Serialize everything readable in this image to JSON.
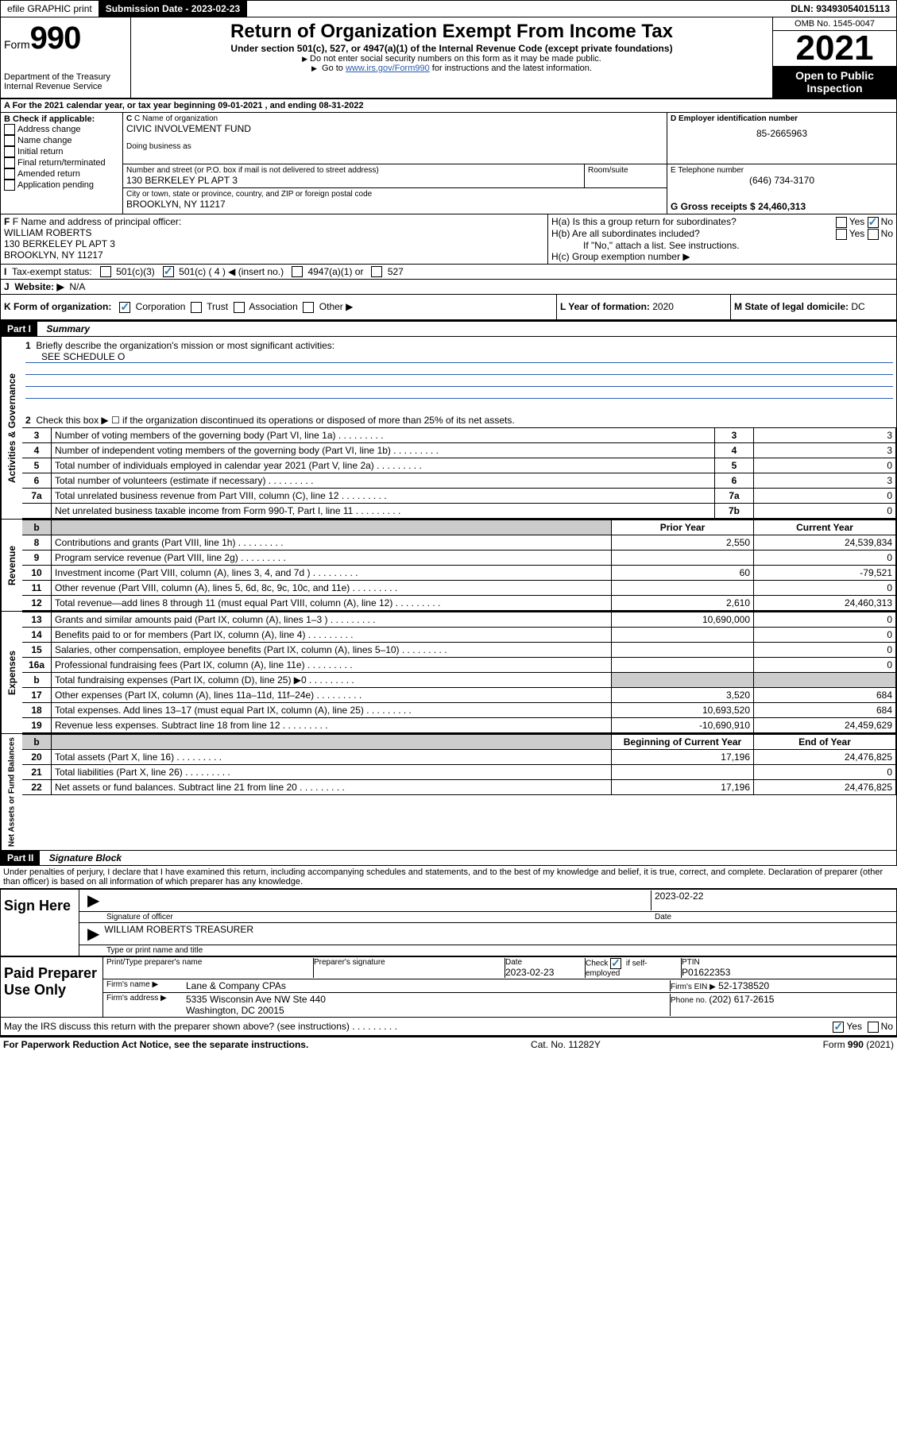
{
  "topbar": {
    "efile": "efile GRAPHIC print",
    "subdate_label": "Submission Date - ",
    "subdate": "2023-02-23",
    "dln_label": "DLN: ",
    "dln": "93493054015113"
  },
  "header": {
    "form_label": "Form",
    "form_num": "990",
    "dept": "Department of the Treasury\nInternal Revenue Service",
    "title": "Return of Organization Exempt From Income Tax",
    "sub": "Under section 501(c), 527, or 4947(a)(1) of the Internal Revenue Code (except private foundations)",
    "note1": "Do not enter social security numbers on this form as it may be made public.",
    "note2_pre": "Go to ",
    "note2_link": "www.irs.gov/Form990",
    "note2_post": " for instructions and the latest information.",
    "omb": "OMB No. 1545-0047",
    "year": "2021",
    "open": "Open to Public Inspection"
  },
  "lineA": {
    "prefix": "A For the 2021 calendar year, or tax year beginning ",
    "begin": "09-01-2021",
    "mid": " , and ending ",
    "end": "08-31-2022"
  },
  "boxB": {
    "label": "B Check if applicable:",
    "opts": [
      "Address change",
      "Name change",
      "Initial return",
      "Final return/terminated",
      "Amended return",
      "Application pending"
    ]
  },
  "boxC": {
    "name_label": "C Name of organization",
    "name": "CIVIC INVOLVEMENT FUND",
    "dba_label": "Doing business as",
    "addr_label": "Number and street (or P.O. box if mail is not delivered to street address)",
    "room_label": "Room/suite",
    "addr": "130 BERKELEY PL APT 3",
    "city_label": "City or town, state or province, country, and ZIP or foreign postal code",
    "city": "BROOKLYN, NY  11217"
  },
  "boxD": {
    "label": "D Employer identification number",
    "ein": "85-2665963"
  },
  "boxE": {
    "label": "E Telephone number",
    "phone": "(646) 734-3170"
  },
  "boxG": {
    "label": "G Gross receipts $ ",
    "val": "24,460,313"
  },
  "boxF": {
    "label": "F Name and address of principal officer:",
    "name": "WILLIAM ROBERTS",
    "addr1": "130 BERKELEY PL APT 3",
    "addr2": "BROOKLYN, NY  11217"
  },
  "boxH": {
    "a_label": "H(a)  Is this a group return for subordinates?",
    "b_label": "H(b)  Are all subordinates included?",
    "b_note": "If \"No,\" attach a list. See instructions.",
    "c_label": "H(c)  Group exemption number ▶",
    "yes": "Yes",
    "no": "No"
  },
  "lineI": {
    "label": "Tax-exempt status:",
    "opt1": "501(c)(3)",
    "opt2": "501(c) ( 4 ) ◀ (insert no.)",
    "opt3": "4947(a)(1) or",
    "opt4": "527"
  },
  "lineJ": {
    "label": "Website: ▶",
    "val": "N/A"
  },
  "lineK": {
    "label": "K Form of organization:",
    "opts": [
      "Corporation",
      "Trust",
      "Association",
      "Other ▶"
    ]
  },
  "lineL": {
    "label": "L Year of formation: ",
    "val": "2020"
  },
  "lineM": {
    "label": "M State of legal domicile: ",
    "val": "DC"
  },
  "part1": {
    "header": "Part I",
    "title": "Summary",
    "line1": "Briefly describe the organization's mission or most significant activities:",
    "line1_val": "SEE SCHEDULE O",
    "line2": "Check this box ▶ ☐  if the organization discontinued its operations or disposed of more than 25% of its net assets.",
    "vert_gov": "Activities & Governance",
    "vert_rev": "Revenue",
    "vert_exp": "Expenses",
    "vert_net": "Net Assets or Fund Balances",
    "cols": {
      "prior": "Prior Year",
      "current": "Current Year",
      "beg": "Beginning of Current Year",
      "end": "End of Year"
    },
    "rows_gov": [
      {
        "n": "3",
        "label": "Number of voting members of the governing body (Part VI, line 1a)",
        "k": "3",
        "v": "3"
      },
      {
        "n": "4",
        "label": "Number of independent voting members of the governing body (Part VI, line 1b)",
        "k": "4",
        "v": "3"
      },
      {
        "n": "5",
        "label": "Total number of individuals employed in calendar year 2021 (Part V, line 2a)",
        "k": "5",
        "v": "0"
      },
      {
        "n": "6",
        "label": "Total number of volunteers (estimate if necessary)",
        "k": "6",
        "v": "3"
      },
      {
        "n": "7a",
        "label": "Total unrelated business revenue from Part VIII, column (C), line 12",
        "k": "7a",
        "v": "0"
      },
      {
        "n": "",
        "label": "Net unrelated business taxable income from Form 990-T, Part I, line 11",
        "k": "7b",
        "v": "0"
      }
    ],
    "rows_rev": [
      {
        "n": "8",
        "label": "Contributions and grants (Part VIII, line 1h)",
        "p": "2,550",
        "c": "24,539,834"
      },
      {
        "n": "9",
        "label": "Program service revenue (Part VIII, line 2g)",
        "p": "",
        "c": "0"
      },
      {
        "n": "10",
        "label": "Investment income (Part VIII, column (A), lines 3, 4, and 7d )",
        "p": "60",
        "c": "-79,521"
      },
      {
        "n": "11",
        "label": "Other revenue (Part VIII, column (A), lines 5, 6d, 8c, 9c, 10c, and 11e)",
        "p": "",
        "c": "0"
      },
      {
        "n": "12",
        "label": "Total revenue—add lines 8 through 11 (must equal Part VIII, column (A), line 12)",
        "p": "2,610",
        "c": "24,460,313"
      }
    ],
    "rows_exp": [
      {
        "n": "13",
        "label": "Grants and similar amounts paid (Part IX, column (A), lines 1–3 )",
        "p": "10,690,000",
        "c": "0"
      },
      {
        "n": "14",
        "label": "Benefits paid to or for members (Part IX, column (A), line 4)",
        "p": "",
        "c": "0"
      },
      {
        "n": "15",
        "label": "Salaries, other compensation, employee benefits (Part IX, column (A), lines 5–10)",
        "p": "",
        "c": "0"
      },
      {
        "n": "16a",
        "label": "Professional fundraising fees (Part IX, column (A), line 11e)",
        "p": "",
        "c": "0"
      },
      {
        "n": "b",
        "label": "Total fundraising expenses (Part IX, column (D), line 25) ▶0",
        "p": "shaded",
        "c": "shaded"
      },
      {
        "n": "17",
        "label": "Other expenses (Part IX, column (A), lines 11a–11d, 11f–24e)",
        "p": "3,520",
        "c": "684"
      },
      {
        "n": "18",
        "label": "Total expenses. Add lines 13–17 (must equal Part IX, column (A), line 25)",
        "p": "10,693,520",
        "c": "684"
      },
      {
        "n": "19",
        "label": "Revenue less expenses. Subtract line 18 from line 12",
        "p": "-10,690,910",
        "c": "24,459,629"
      }
    ],
    "rows_net": [
      {
        "n": "20",
        "label": "Total assets (Part X, line 16)",
        "p": "17,196",
        "c": "24,476,825"
      },
      {
        "n": "21",
        "label": "Total liabilities (Part X, line 26)",
        "p": "",
        "c": "0"
      },
      {
        "n": "22",
        "label": "Net assets or fund balances. Subtract line 21 from line 20",
        "p": "17,196",
        "c": "24,476,825"
      }
    ]
  },
  "part2": {
    "header": "Part II",
    "title": "Signature Block",
    "decl": "Under penalties of perjury, I declare that I have examined this return, including accompanying schedules and statements, and to the best of my knowledge and belief, it is true, correct, and complete. Declaration of preparer (other than officer) is based on all information of which preparer has any knowledge."
  },
  "sign": {
    "here": "Sign Here",
    "sig_label": "Signature of officer",
    "date_label": "Date",
    "date": "2023-02-22",
    "name": "WILLIAM ROBERTS  TREASURER",
    "name_label": "Type or print name and title"
  },
  "preparer": {
    "label": "Paid Preparer Use Only",
    "print_label": "Print/Type preparer's name",
    "sig_label": "Preparer's signature",
    "date_label": "Date",
    "date": "2023-02-23",
    "check_label": "Check ☑ if self-employed",
    "ptin_label": "PTIN",
    "ptin": "P01622353",
    "firm_name_label": "Firm's name    ▶",
    "firm_name": "Lane & Company CPAs",
    "firm_ein_label": "Firm's EIN ▶",
    "firm_ein": "52-1738520",
    "firm_addr_label": "Firm's address ▶",
    "firm_addr1": "5335 Wisconsin Ave NW Ste 440",
    "firm_addr2": "Washington, DC  20015",
    "phone_label": "Phone no. ",
    "phone": "(202) 617-2615"
  },
  "may_discuss": "May the IRS discuss this return with the preparer shown above? (see instructions)",
  "footer": {
    "pra": "For Paperwork Reduction Act Notice, see the separate instructions.",
    "cat": "Cat. No. 11282Y",
    "form": "Form 990 (2021)"
  }
}
